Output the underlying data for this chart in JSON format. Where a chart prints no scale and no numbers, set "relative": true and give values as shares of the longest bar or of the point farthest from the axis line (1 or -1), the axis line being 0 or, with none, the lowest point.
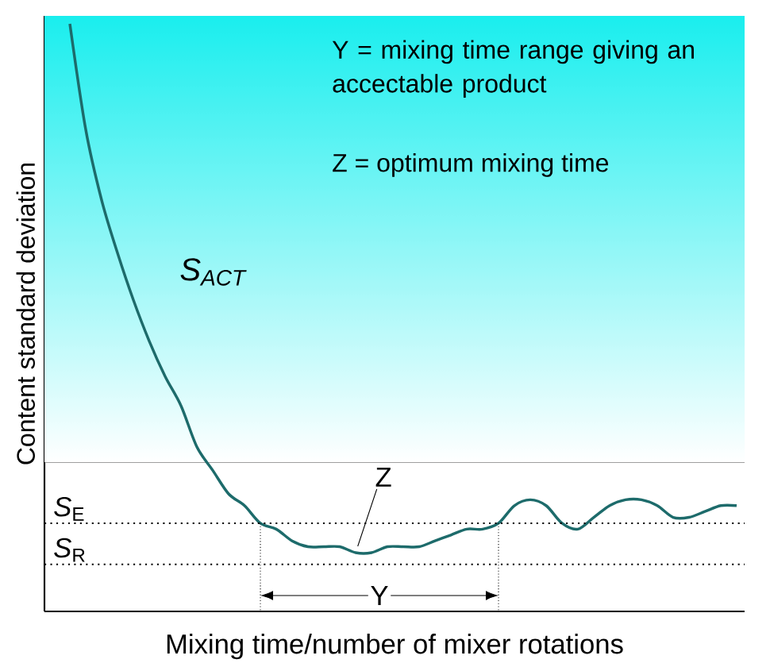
{
  "chart_data": {
    "type": "line",
    "relative": true,
    "xlabel": "Mixing time/number of mixer rotations",
    "ylabel": "Content standard deviation",
    "categories": [
      null,
      null,
      null,
      null,
      null,
      null,
      null,
      null,
      null,
      null,
      null,
      null,
      null,
      null,
      null,
      null,
      null,
      null,
      null,
      null,
      null,
      null,
      null,
      null,
      null,
      null,
      null,
      null,
      null,
      null,
      null,
      null,
      null,
      null,
      null,
      null,
      null,
      null,
      null,
      null,
      null,
      null,
      null
    ],
    "series": [
      {
        "color": "#1d6b6b",
        "values": [
          1.0,
          0.82,
          0.7,
          0.61,
          0.53,
          0.46,
          0.4,
          0.35,
          0.28,
          0.24,
          0.2,
          0.18,
          0.15,
          0.14,
          0.12,
          0.11,
          0.11,
          0.11,
          0.1,
          0.1,
          0.11,
          0.11,
          0.11,
          0.12,
          0.13,
          0.14,
          0.14,
          0.15,
          0.18,
          0.19,
          0.18,
          0.15,
          0.14,
          0.16,
          0.18,
          0.19,
          0.19,
          0.18,
          0.16,
          0.16,
          0.17,
          0.18,
          0.18
        ]
      }
    ],
    "ref_lines": [
      {
        "axis": "y",
        "value": 0.15,
        "label": "*S*$_{E}$",
        "line_style": "dotted"
      },
      {
        "axis": "y",
        "value": 0.08,
        "label": "*S*$_{R}$",
        "line_style": "dotted"
      }
    ],
    "annotations": [
      "Y = mixing time range giving an accectable product",
      "Z = optimum mixing time",
      "*S*$_{ACT}$",
      "Z",
      "Y"
    ],
    "marker": "none",
    "line_style": "solid"
  }
}
